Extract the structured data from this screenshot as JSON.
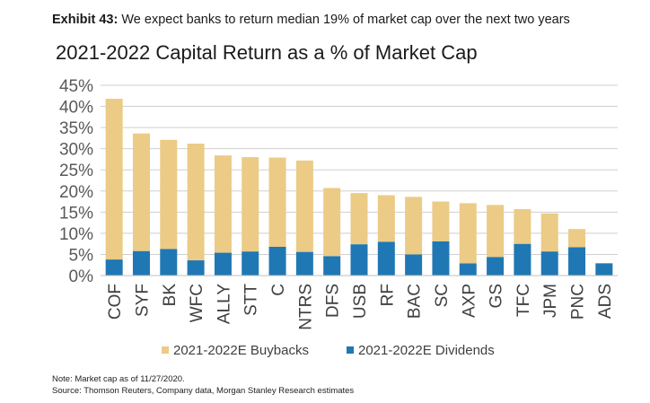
{
  "header": {
    "exhibit_label": "Exhibit 43:",
    "exhibit_text": "We expect banks to return median 19% of market cap over the next two years"
  },
  "chart_data": {
    "type": "bar",
    "stacked": true,
    "title": "2021-2022 Capital Return as a % of Market Cap",
    "categories": [
      "COF",
      "SYF",
      "BK",
      "WFC",
      "ALLY",
      "STT",
      "C",
      "NTRS",
      "DFS",
      "USB",
      "RF",
      "BAC",
      "SC",
      "AXP",
      "GS",
      "TFC",
      "JPM",
      "PNC",
      "ADS"
    ],
    "series": [
      {
        "name": "2021-2022E Dividends",
        "color": "#1f78b4",
        "values": [
          3.8,
          5.8,
          6.3,
          3.6,
          5.4,
          5.7,
          6.8,
          5.6,
          4.6,
          7.4,
          8.0,
          5.0,
          8.1,
          2.9,
          4.4,
          7.5,
          5.7,
          6.7,
          2.9
        ]
      },
      {
        "name": "2021-2022E Buybacks",
        "color": "#ebcb85",
        "values": [
          38.0,
          27.8,
          25.8,
          27.6,
          23.0,
          22.3,
          21.1,
          21.6,
          16.1,
          12.1,
          11.0,
          13.6,
          9.4,
          14.2,
          12.3,
          8.2,
          9.0,
          4.3,
          0.0
        ]
      }
    ],
    "legend_order": [
      "2021-2022E Buybacks",
      "2021-2022E Dividends"
    ],
    "yticks": [
      "0%",
      "5%",
      "10%",
      "15%",
      "20%",
      "25%",
      "30%",
      "35%",
      "40%",
      "45%"
    ],
    "ylim": [
      0,
      45
    ],
    "grid": true,
    "legend_position": "bottom"
  },
  "notes": {
    "note": "Note: Market cap as of 11/27/2020.",
    "source": "Source: Thomson Reuters, Company data, Morgan Stanley Research estimates"
  }
}
